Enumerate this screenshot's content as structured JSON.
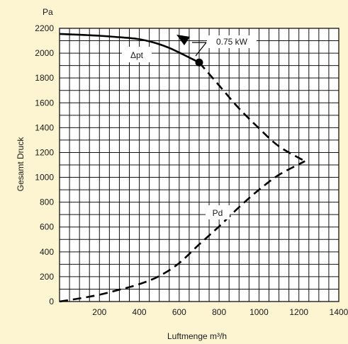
{
  "chart_data": {
    "type": "line",
    "xlabel": "Luftmenge  m³/h",
    "ylabel": "Gesamt Druck",
    "yunit": "Pa",
    "xlim": [
      0,
      1400
    ],
    "ylim": [
      0,
      2200
    ],
    "xticks": [
      200,
      400,
      600,
      800,
      1000,
      1200,
      1400
    ],
    "yticks": [
      0,
      200,
      400,
      600,
      800,
      1000,
      1200,
      1400,
      1600,
      1800,
      2000,
      2200
    ],
    "grid": true,
    "background": "#fdf4d2",
    "series": [
      {
        "name": "Δpt",
        "style": "solid",
        "points": [
          [
            0,
            2155
          ],
          [
            100,
            2148
          ],
          [
            200,
            2140
          ],
          [
            300,
            2128
          ],
          [
            350,
            2122
          ],
          [
            400,
            2112
          ],
          [
            450,
            2095
          ],
          [
            500,
            2072
          ],
          [
            550,
            2042
          ],
          [
            600,
            2005
          ],
          [
            650,
            1965
          ],
          [
            700,
            1925
          ]
        ]
      },
      {
        "name": "Pd",
        "style": "dashed",
        "points": [
          [
            0,
            0
          ],
          [
            100,
            25
          ],
          [
            200,
            55
          ],
          [
            300,
            95
          ],
          [
            400,
            140
          ],
          [
            500,
            205
          ],
          [
            600,
            310
          ],
          [
            700,
            460
          ],
          [
            800,
            605
          ],
          [
            900,
            760
          ],
          [
            1000,
            900
          ],
          [
            1100,
            1020
          ],
          [
            1230,
            1130
          ]
        ]
      },
      {
        "name": "",
        "style": "dashed",
        "points": [
          [
            700,
            1925
          ],
          [
            800,
            1740
          ],
          [
            900,
            1555
          ],
          [
            1000,
            1395
          ],
          [
            1100,
            1250
          ],
          [
            1230,
            1130
          ]
        ]
      }
    ],
    "operating_point": {
      "x": 700,
      "y": 1925
    },
    "annotations": [
      {
        "text": "0.75 kW"
      }
    ]
  }
}
